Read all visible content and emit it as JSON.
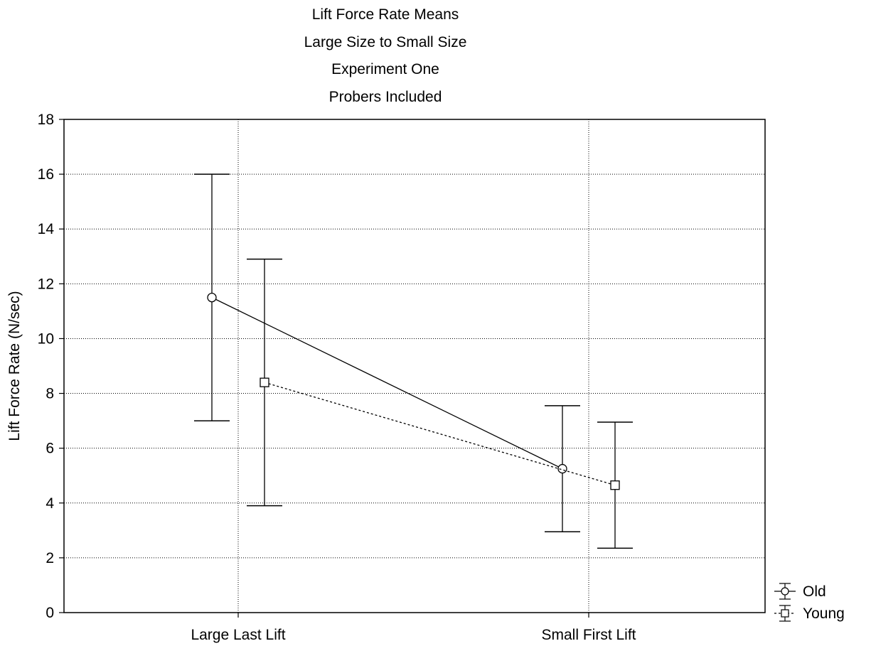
{
  "chart_data": {
    "type": "line",
    "title_lines": [
      "Lift Force Rate Means",
      "Large Size to Small Size",
      "Experiment One",
      "Probers Included"
    ],
    "xlabel": "",
    "ylabel": "Lift Force Rate (N/sec)",
    "categories": [
      "Large Last Lift",
      "Small First Lift"
    ],
    "ylim": [
      0,
      18
    ],
    "yticks": [
      0,
      2,
      4,
      6,
      8,
      10,
      12,
      14,
      16,
      18
    ],
    "grid": true,
    "legend_position": "bottom-right",
    "series": [
      {
        "name": "Old",
        "marker": "circle",
        "line_style": "solid",
        "values": [
          11.5,
          5.25
        ],
        "err_low": [
          7.0,
          2.95
        ],
        "err_high": [
          16.0,
          7.55
        ]
      },
      {
        "name": "Young",
        "marker": "square",
        "line_style": "dashed",
        "values": [
          8.4,
          4.65
        ],
        "err_low": [
          3.9,
          2.35
        ],
        "err_high": [
          12.9,
          6.95
        ]
      }
    ]
  }
}
